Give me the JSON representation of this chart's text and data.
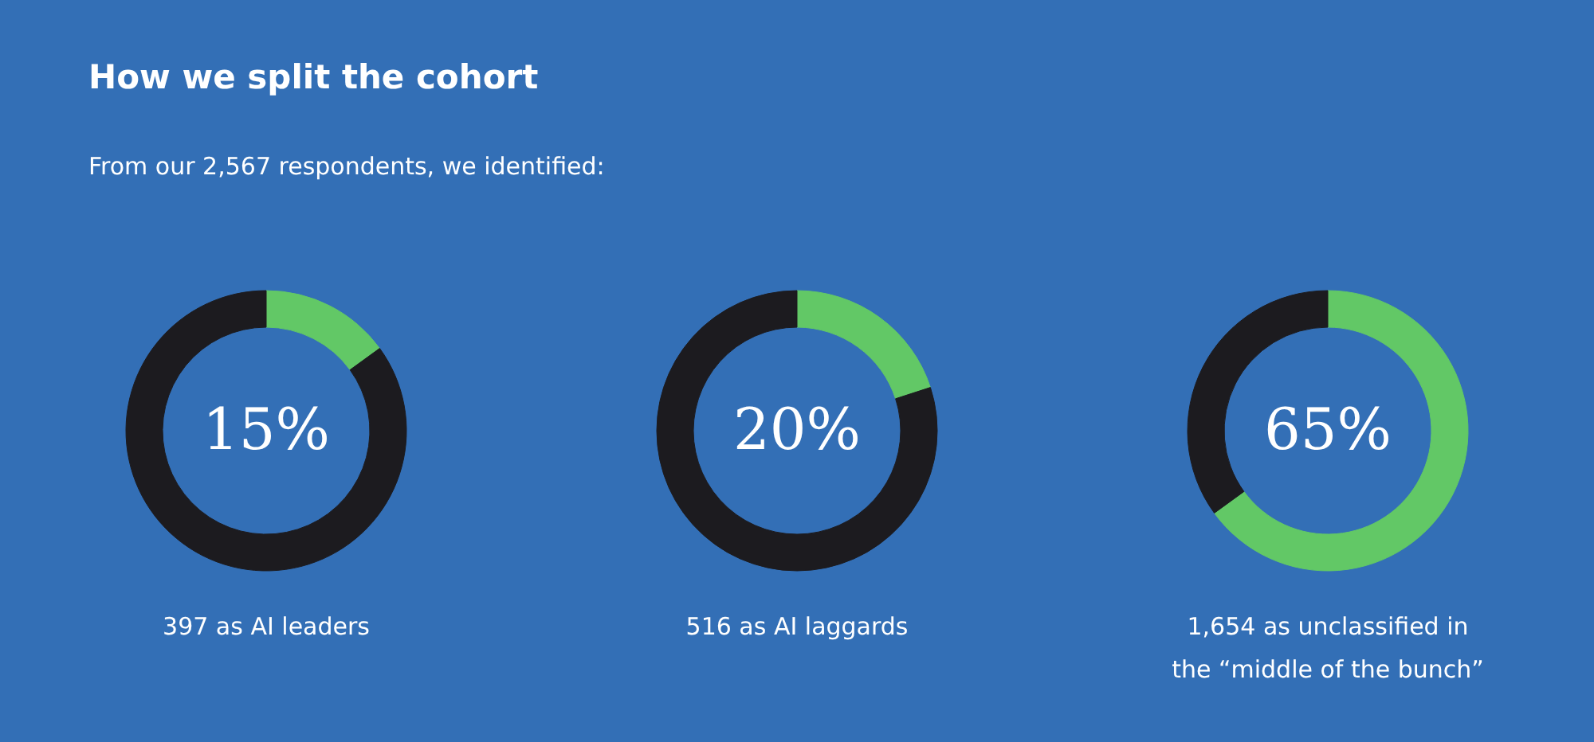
{
  "chart_data": [
    {
      "type": "donut",
      "title": "How we split the cohort",
      "subtitle": "From our 2,567 respondents, we identified:",
      "categories": [
        null,
        null
      ],
      "values": [
        15,
        85
      ],
      "colors": [
        "#62c866",
        "#1c1b1f"
      ],
      "annotations": [
        "15%",
        "397 as AI leaders"
      ]
    },
    {
      "type": "donut",
      "categories": [
        null,
        null
      ],
      "values": [
        20,
        80
      ],
      "colors": [
        "#62c866",
        "#1c1b1f"
      ],
      "annotations": [
        "20%",
        "516 as AI laggards"
      ]
    },
    {
      "type": "donut",
      "categories": [
        null,
        null
      ],
      "values": [
        65,
        35
      ],
      "colors": [
        "#62c866",
        "#1c1b1f"
      ],
      "annotations": [
        "65%",
        "1,654 as unclassified in the “middle of the bunch”"
      ]
    }
  ]
}
